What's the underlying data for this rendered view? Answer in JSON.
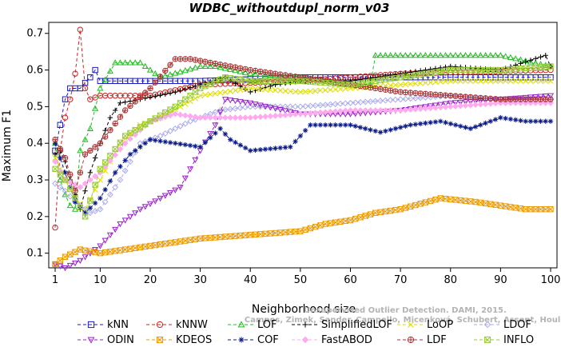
{
  "chart_data": {
    "type": "line",
    "title": "WDBC_withoutdupl_norm_v03",
    "xlabel": "Neighborhood size",
    "ylabel": "Maximum F1",
    "xlim": [
      1,
      100
    ],
    "ylim": [
      0.06,
      0.73
    ],
    "xticks": [
      1,
      10,
      20,
      30,
      40,
      50,
      60,
      70,
      80,
      90,
      100
    ],
    "yticks": [
      0.1,
      0.2,
      0.3,
      0.4,
      0.5,
      0.6,
      0.7
    ],
    "legend_position": "bottom",
    "series": [
      {
        "name": "kNN",
        "color": "#1a1acc",
        "marker": "square",
        "dash": "4,3",
        "points": [
          [
            1,
            0.38
          ],
          [
            2,
            0.45
          ],
          [
            3,
            0.52
          ],
          [
            4,
            0.55
          ],
          [
            6,
            0.55
          ],
          [
            8,
            0.58
          ],
          [
            9,
            0.6
          ],
          [
            10,
            0.57
          ],
          [
            30,
            0.57
          ],
          [
            50,
            0.58
          ],
          [
            100,
            0.58
          ]
        ]
      },
      {
        "name": "kNNW",
        "color": "#cc2222",
        "marker": "circle",
        "dash": "4,3",
        "points": [
          [
            1,
            0.17
          ],
          [
            2,
            0.38
          ],
          [
            3,
            0.47
          ],
          [
            4,
            0.52
          ],
          [
            5,
            0.59
          ],
          [
            6,
            0.71
          ],
          [
            7,
            0.55
          ],
          [
            8,
            0.52
          ],
          [
            10,
            0.53
          ],
          [
            20,
            0.53
          ],
          [
            30,
            0.56
          ],
          [
            50,
            0.57
          ],
          [
            70,
            0.59
          ],
          [
            100,
            0.6
          ]
        ]
      },
      {
        "name": "LOF",
        "color": "#22bb22",
        "marker": "triangle-up",
        "dash": "4,3",
        "points": [
          [
            1,
            0.4
          ],
          [
            2,
            0.3
          ],
          [
            3,
            0.26
          ],
          [
            4,
            0.23
          ],
          [
            5,
            0.22
          ],
          [
            6,
            0.38
          ],
          [
            8,
            0.44
          ],
          [
            10,
            0.55
          ],
          [
            13,
            0.62
          ],
          [
            18,
            0.62
          ],
          [
            22,
            0.58
          ],
          [
            30,
            0.61
          ],
          [
            33,
            0.61
          ],
          [
            40,
            0.59
          ],
          [
            50,
            0.58
          ],
          [
            60,
            0.56
          ],
          [
            64,
            0.56
          ],
          [
            65,
            0.64
          ],
          [
            90,
            0.64
          ],
          [
            100,
            0.61
          ]
        ]
      },
      {
        "name": "SimplifiedLOF",
        "color": "#000000",
        "marker": "plus",
        "dash": "4,3",
        "points": [
          [
            1,
            0.37
          ],
          [
            2,
            0.38
          ],
          [
            3,
            0.35
          ],
          [
            4,
            0.3
          ],
          [
            5,
            0.26
          ],
          [
            6,
            0.22
          ],
          [
            8,
            0.32
          ],
          [
            10,
            0.4
          ],
          [
            12,
            0.47
          ],
          [
            14,
            0.51
          ],
          [
            18,
            0.52
          ],
          [
            25,
            0.54
          ],
          [
            30,
            0.56
          ],
          [
            35,
            0.58
          ],
          [
            40,
            0.54
          ],
          [
            45,
            0.56
          ],
          [
            50,
            0.57
          ],
          [
            60,
            0.57
          ],
          [
            70,
            0.59
          ],
          [
            80,
            0.61
          ],
          [
            90,
            0.6
          ],
          [
            99,
            0.64
          ],
          [
            100,
            0.61
          ]
        ]
      },
      {
        "name": "LoOP",
        "color": "#dddd00",
        "marker": "cross",
        "dash": "4,3",
        "points": [
          [
            1,
            0.36
          ],
          [
            3,
            0.3
          ],
          [
            5,
            0.25
          ],
          [
            7,
            0.22
          ],
          [
            10,
            0.3
          ],
          [
            14,
            0.4
          ],
          [
            18,
            0.45
          ],
          [
            22,
            0.47
          ],
          [
            26,
            0.5
          ],
          [
            30,
            0.53
          ],
          [
            40,
            0.55
          ],
          [
            50,
            0.54
          ],
          [
            60,
            0.55
          ],
          [
            70,
            0.56
          ],
          [
            80,
            0.57
          ],
          [
            90,
            0.57
          ],
          [
            100,
            0.57
          ]
        ]
      },
      {
        "name": "LDOF",
        "color": "#aaaaee",
        "marker": "diamond",
        "dash": "4,3",
        "points": [
          [
            1,
            0.29
          ],
          [
            3,
            0.27
          ],
          [
            5,
            0.24
          ],
          [
            8,
            0.21
          ],
          [
            10,
            0.22
          ],
          [
            14,
            0.3
          ],
          [
            18,
            0.4
          ],
          [
            22,
            0.42
          ],
          [
            28,
            0.46
          ],
          [
            34,
            0.49
          ],
          [
            40,
            0.5
          ],
          [
            50,
            0.5
          ],
          [
            60,
            0.51
          ],
          [
            70,
            0.52
          ],
          [
            80,
            0.53
          ],
          [
            90,
            0.52
          ],
          [
            100,
            0.52
          ]
        ]
      },
      {
        "name": "ODIN",
        "color": "#9922cc",
        "marker": "triangle-down",
        "dash": "4,3",
        "points": [
          [
            1,
            0.07
          ],
          [
            3,
            0.06
          ],
          [
            6,
            0.08
          ],
          [
            10,
            0.12
          ],
          [
            14,
            0.18
          ],
          [
            18,
            0.22
          ],
          [
            22,
            0.25
          ],
          [
            26,
            0.28
          ],
          [
            30,
            0.38
          ],
          [
            33,
            0.45
          ],
          [
            35,
            0.52
          ],
          [
            40,
            0.51
          ],
          [
            50,
            0.48
          ],
          [
            60,
            0.48
          ],
          [
            70,
            0.49
          ],
          [
            80,
            0.51
          ],
          [
            90,
            0.52
          ],
          [
            100,
            0.53
          ]
        ]
      },
      {
        "name": "KDEOS",
        "color": "#ee9900",
        "marker": "square-x",
        "dash": "4,3",
        "points": [
          [
            1,
            0.07
          ],
          [
            3,
            0.09
          ],
          [
            6,
            0.11
          ],
          [
            10,
            0.1
          ],
          [
            15,
            0.11
          ],
          [
            20,
            0.12
          ],
          [
            30,
            0.14
          ],
          [
            40,
            0.15
          ],
          [
            50,
            0.16
          ],
          [
            55,
            0.18
          ],
          [
            60,
            0.19
          ],
          [
            65,
            0.21
          ],
          [
            70,
            0.22
          ],
          [
            78,
            0.25
          ],
          [
            85,
            0.24
          ],
          [
            90,
            0.23
          ],
          [
            95,
            0.22
          ],
          [
            100,
            0.22
          ]
        ]
      },
      {
        "name": "COF",
        "color": "#0a1a88",
        "marker": "asterisk",
        "dash": "4,3",
        "points": [
          [
            1,
            0.4
          ],
          [
            3,
            0.32
          ],
          [
            5,
            0.24
          ],
          [
            7,
            0.21
          ],
          [
            10,
            0.25
          ],
          [
            13,
            0.32
          ],
          [
            16,
            0.37
          ],
          [
            20,
            0.41
          ],
          [
            25,
            0.4
          ],
          [
            30,
            0.39
          ],
          [
            34,
            0.44
          ],
          [
            36,
            0.41
          ],
          [
            40,
            0.38
          ],
          [
            48,
            0.39
          ],
          [
            52,
            0.45
          ],
          [
            60,
            0.45
          ],
          [
            66,
            0.43
          ],
          [
            72,
            0.45
          ],
          [
            78,
            0.46
          ],
          [
            84,
            0.44
          ],
          [
            90,
            0.47
          ],
          [
            95,
            0.46
          ],
          [
            100,
            0.46
          ]
        ]
      },
      {
        "name": "FastABOD",
        "color": "#ffaaee",
        "marker": "diamond-filled",
        "dash": "4,3",
        "points": [
          [
            1,
            0.35
          ],
          [
            3,
            0.3
          ],
          [
            6,
            0.28
          ],
          [
            10,
            0.32
          ],
          [
            15,
            0.4
          ],
          [
            20,
            0.46
          ],
          [
            25,
            0.48
          ],
          [
            30,
            0.47
          ],
          [
            40,
            0.47
          ],
          [
            50,
            0.48
          ],
          [
            60,
            0.49
          ],
          [
            70,
            0.49
          ],
          [
            80,
            0.5
          ],
          [
            90,
            0.51
          ],
          [
            100,
            0.51
          ]
        ]
      },
      {
        "name": "LDF",
        "color": "#aa3333",
        "marker": "circle-plus",
        "dash": "4,3",
        "points": [
          [
            1,
            0.41
          ],
          [
            3,
            0.36
          ],
          [
            5,
            0.27
          ],
          [
            7,
            0.37
          ],
          [
            10,
            0.4
          ],
          [
            15,
            0.49
          ],
          [
            20,
            0.55
          ],
          [
            25,
            0.63
          ],
          [
            28,
            0.63
          ],
          [
            32,
            0.62
          ],
          [
            40,
            0.6
          ],
          [
            50,
            0.58
          ],
          [
            60,
            0.56
          ],
          [
            70,
            0.54
          ],
          [
            80,
            0.53
          ],
          [
            90,
            0.52
          ],
          [
            100,
            0.52
          ]
        ]
      },
      {
        "name": "INFLO",
        "color": "#99cc33",
        "marker": "square-x",
        "dash": "4,3",
        "points": [
          [
            1,
            0.33
          ],
          [
            3,
            0.3
          ],
          [
            5,
            0.25
          ],
          [
            7,
            0.2
          ],
          [
            10,
            0.33
          ],
          [
            15,
            0.42
          ],
          [
            20,
            0.46
          ],
          [
            25,
            0.5
          ],
          [
            30,
            0.55
          ],
          [
            35,
            0.58
          ],
          [
            40,
            0.57
          ],
          [
            50,
            0.57
          ],
          [
            60,
            0.56
          ],
          [
            70,
            0.58
          ],
          [
            80,
            0.6
          ],
          [
            90,
            0.6
          ],
          [
            100,
            0.61
          ]
        ]
      }
    ]
  },
  "watermark": {
    "line1": "Unsupervised Outlier Detection. DAMI, 2015.",
    "line2": "Campos, Zimek, Sander, Campello, Micenková, Schubert, Assent, Houle"
  }
}
